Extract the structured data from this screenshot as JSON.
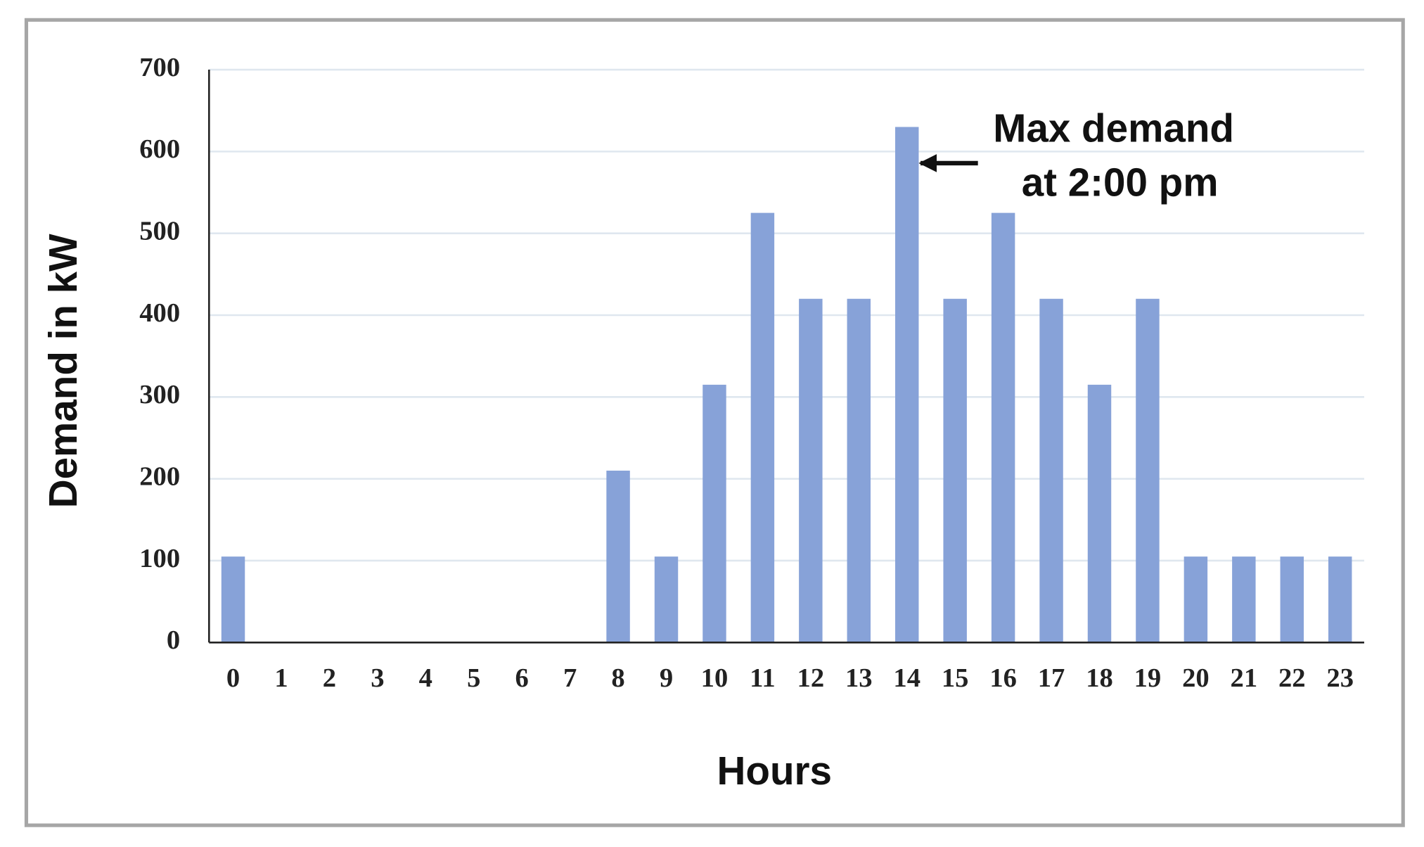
{
  "chart_data": {
    "type": "bar",
    "x_label": "Hours",
    "y_label": "Demand in kW",
    "annotation": [
      "Max demand",
      "at 2:00 pm"
    ],
    "categories": [
      "0",
      "1",
      "2",
      "3",
      "4",
      "5",
      "6",
      "7",
      "8",
      "9",
      "10",
      "11",
      "12",
      "13",
      "14",
      "15",
      "16",
      "17",
      "18",
      "19",
      "20",
      "21",
      "22",
      "23"
    ],
    "values": [
      105,
      0,
      0,
      0,
      0,
      0,
      0,
      0,
      210,
      105,
      315,
      525,
      420,
      420,
      630,
      420,
      525,
      420,
      315,
      420,
      105,
      105,
      105,
      105
    ],
    "color": "#87a2d8",
    "ylim": [
      0,
      700
    ],
    "yticks": [
      0,
      100,
      200,
      300,
      400,
      500,
      600,
      700
    ],
    "grid": true
  }
}
